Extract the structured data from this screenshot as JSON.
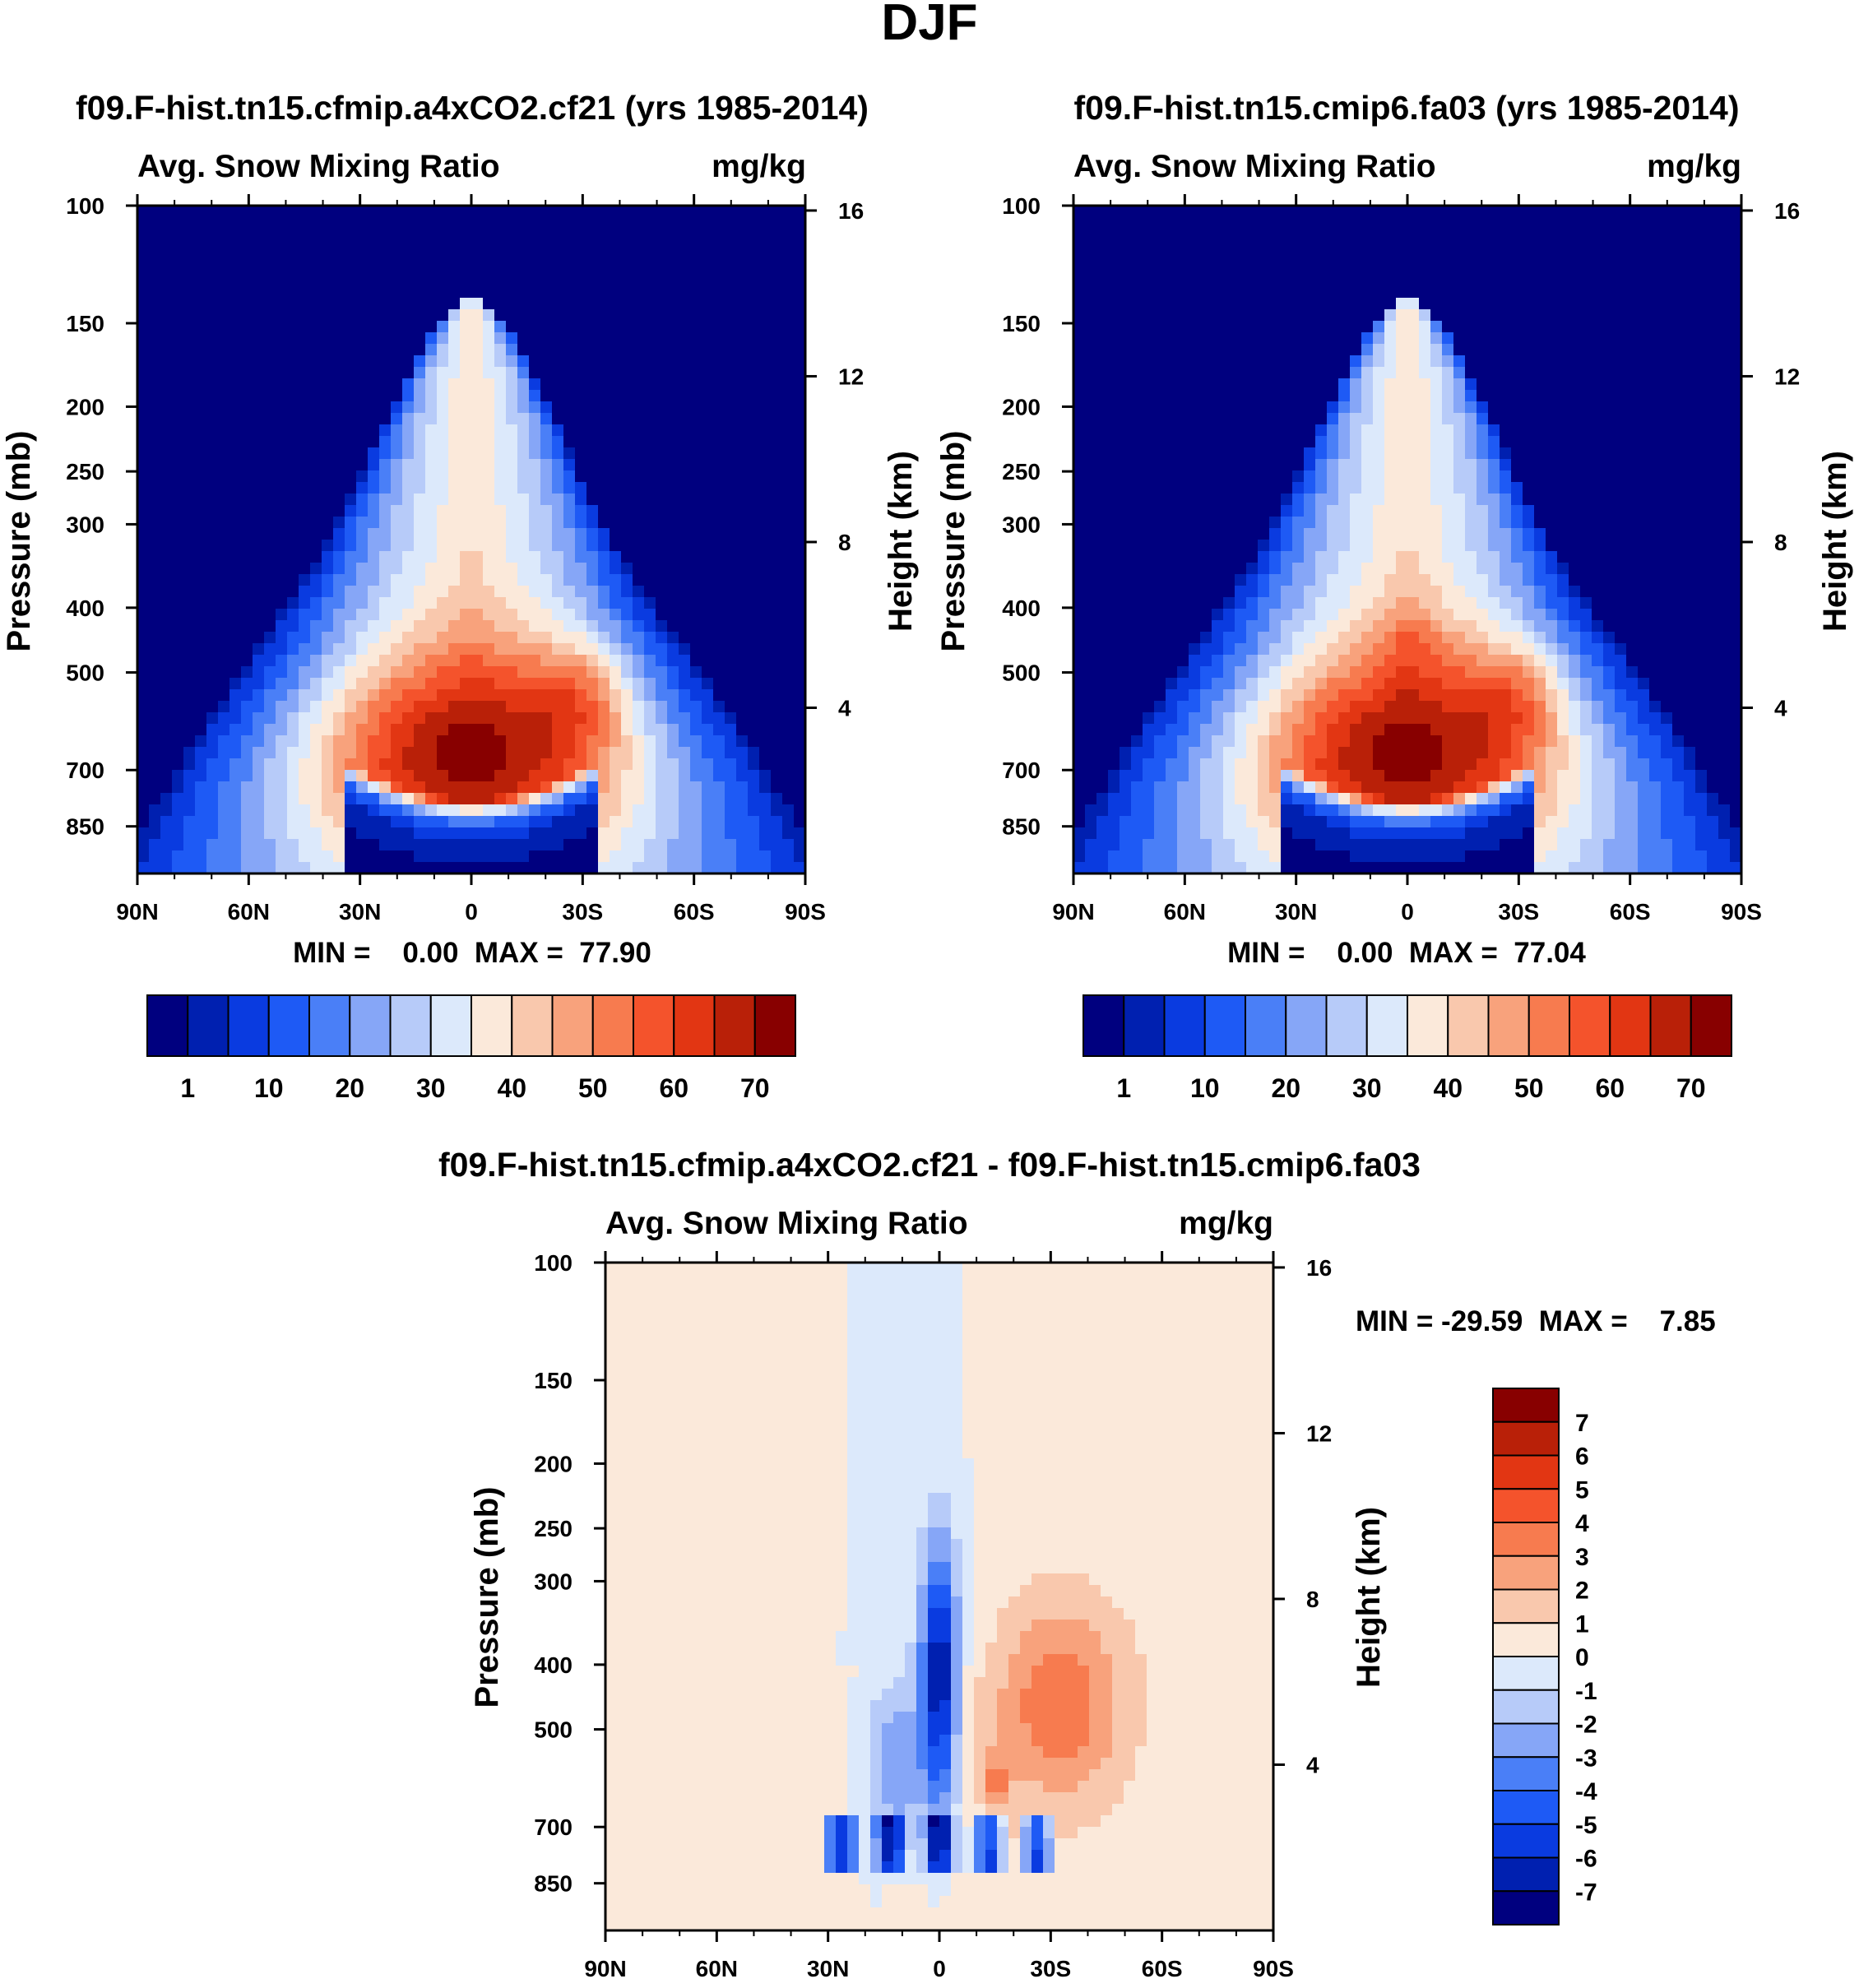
{
  "figure_title": "DJF",
  "chart_data": [
    {
      "type": "heatmap",
      "title": "f09.F-hist.tn15.cfmip.a4xCO2.cf21 (yrs 1985-2014)",
      "left_label": "Avg. Snow Mixing Ratio",
      "right_label": "mg/kg",
      "ylabel": "Pressure (mb)",
      "y2label": "Height (km)",
      "x_ticks": [
        "90N",
        "60N",
        "30N",
        "0",
        "30S",
        "60S",
        "90S"
      ],
      "x_values": [
        90,
        60,
        30,
        0,
        -30,
        -60,
        -90
      ],
      "y_ticks": [
        "100",
        "150",
        "200",
        "250",
        "300",
        "400",
        "500",
        "700",
        "850"
      ],
      "y_values": [
        100,
        150,
        200,
        250,
        300,
        400,
        500,
        700,
        850
      ],
      "y2_ticks": [
        "16",
        "12",
        "8",
        "4"
      ],
      "y2_values": [
        16,
        12,
        8,
        4
      ],
      "ylim": [
        100,
        1000
      ],
      "minmax_text": "MIN =    0.00  MAX =  77.90",
      "min": 0.0,
      "max": 77.9,
      "field": "full",
      "colorbar_labels": [
        "1",
        "10",
        "20",
        "30",
        "40",
        "50",
        "60",
        "70"
      ],
      "colorbar_levels": [
        1,
        5,
        10,
        15,
        20,
        25,
        30,
        35,
        40,
        45,
        50,
        55,
        60,
        65,
        70
      ]
    },
    {
      "type": "heatmap",
      "title": "f09.F-hist.tn15.cmip6.fa03 (yrs 1985-2014)",
      "left_label": "Avg. Snow Mixing Ratio",
      "right_label": "mg/kg",
      "ylabel": "Pressure (mb)",
      "y2label": "Height (km)",
      "x_ticks": [
        "90N",
        "60N",
        "30N",
        "0",
        "30S",
        "60S",
        "90S"
      ],
      "x_values": [
        90,
        60,
        30,
        0,
        -30,
        -60,
        -90
      ],
      "y_ticks": [
        "100",
        "150",
        "200",
        "250",
        "300",
        "400",
        "500",
        "700",
        "850"
      ],
      "y_values": [
        100,
        150,
        200,
        250,
        300,
        400,
        500,
        700,
        850
      ],
      "y2_ticks": [
        "16",
        "12",
        "8",
        "4"
      ],
      "y2_values": [
        16,
        12,
        8,
        4
      ],
      "ylim": [
        100,
        1000
      ],
      "minmax_text": "MIN =    0.00  MAX =  77.04",
      "min": 0.0,
      "max": 77.04,
      "field": "full",
      "colorbar_labels": [
        "1",
        "10",
        "20",
        "30",
        "40",
        "50",
        "60",
        "70"
      ],
      "colorbar_levels": [
        1,
        5,
        10,
        15,
        20,
        25,
        30,
        35,
        40,
        45,
        50,
        55,
        60,
        65,
        70
      ]
    },
    {
      "type": "heatmap",
      "title": "f09.F-hist.tn15.cfmip.a4xCO2.cf21 - f09.F-hist.tn15.cmip6.fa03",
      "left_label": "Avg. Snow Mixing Ratio",
      "right_label": "mg/kg",
      "ylabel": "Pressure (mb)",
      "y2label": "Height (km)",
      "x_ticks": [
        "90N",
        "60N",
        "30N",
        "0",
        "30S",
        "60S",
        "90S"
      ],
      "x_values": [
        90,
        60,
        30,
        0,
        -30,
        -60,
        -90
      ],
      "y_ticks": [
        "100",
        "150",
        "200",
        "250",
        "300",
        "400",
        "500",
        "700",
        "850"
      ],
      "y_values": [
        100,
        150,
        200,
        250,
        300,
        400,
        500,
        700,
        850
      ],
      "y2_ticks": [
        "16",
        "12",
        "8",
        "4"
      ],
      "y2_values": [
        16,
        12,
        8,
        4
      ],
      "ylim": [
        100,
        1000
      ],
      "minmax_text": "MIN = -29.59  MAX =    7.85",
      "min": -29.59,
      "max": 7.85,
      "field": "diff",
      "colorbar_labels": [
        "7",
        "6",
        "5",
        "4",
        "3",
        "2",
        "1",
        "0",
        "-1",
        "-2",
        "-3",
        "-4",
        "-5",
        "-6",
        "-7"
      ],
      "colorbar_levels": [
        7,
        6,
        5,
        4,
        3,
        2,
        1,
        0,
        -1,
        -2,
        -3,
        -4,
        -5,
        -6,
        -7
      ]
    }
  ],
  "palette": [
    "#00007f",
    "#0020b0",
    "#0a3be0",
    "#1e5af5",
    "#4a7ff7",
    "#86a6f7",
    "#b7cbf9",
    "#dce9fb",
    "#fbe9da",
    "#f9c8ad",
    "#f8a27c",
    "#f77b4f",
    "#f4532c",
    "#e23613",
    "#b92008",
    "#880000"
  ]
}
